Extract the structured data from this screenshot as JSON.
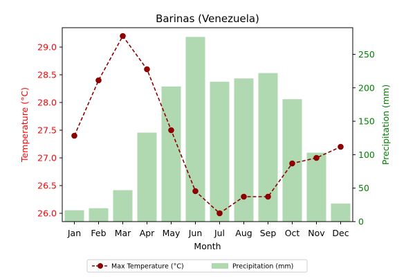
{
  "chart_data": {
    "type": "bar+line",
    "title": "Barinas (Venezuela)",
    "xlabel": "Month",
    "ylabel_left": "Temperature (°C)",
    "ylabel_right": "Precipitation (mm)",
    "categories": [
      "Jan",
      "Feb",
      "Mar",
      "Apr",
      "May",
      "Jun",
      "Jul",
      "Aug",
      "Sep",
      "Oct",
      "Nov",
      "Dec"
    ],
    "series": [
      {
        "name": "Max Temperature (°C)",
        "type": "line",
        "axis": "left",
        "color": "#8b0000",
        "values": [
          27.4,
          28.4,
          29.2,
          28.6,
          27.5,
          26.4,
          26.0,
          26.3,
          26.3,
          26.9,
          27.0,
          27.2
        ]
      },
      {
        "name": "Precipitation (mm)",
        "type": "bar",
        "axis": "right",
        "color": "#b1d9b1",
        "values": [
          17,
          20,
          47,
          133,
          202,
          276,
          209,
          214,
          222,
          183,
          103,
          27
        ]
      }
    ],
    "ylim_left": [
      25.85,
      29.35
    ],
    "yticks_left": [
      "26.0",
      "26.5",
      "27.0",
      "27.5",
      "28.0",
      "28.5",
      "29.0"
    ],
    "ylim_right": [
      0,
      289.8
    ],
    "yticks_right": [
      "0",
      "50",
      "100",
      "150",
      "200",
      "250"
    ],
    "left_axis_color": "#ff0000",
    "right_axis_color": "#008000",
    "grid": false,
    "legend_position": "bottom-center"
  }
}
